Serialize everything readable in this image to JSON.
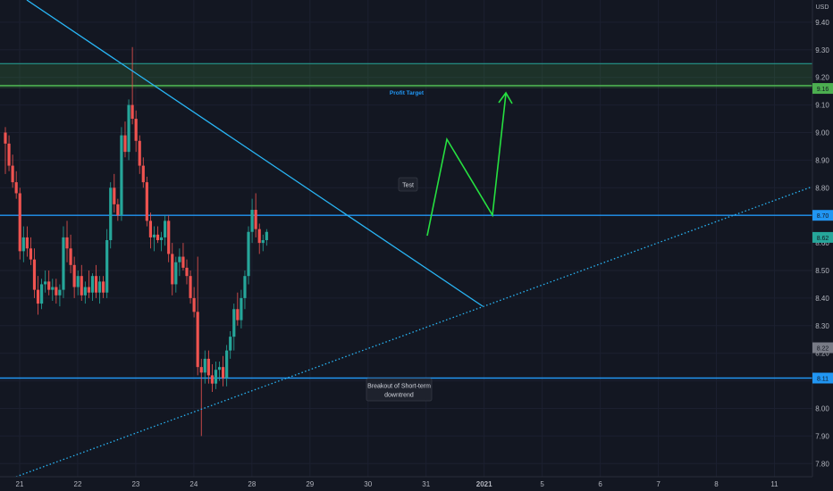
{
  "chart_data": {
    "type": "candlestick",
    "currency": "USD",
    "y_ticks": [
      "7.80",
      "7.90",
      "8.00",
      "8.10",
      "8.20",
      "8.30",
      "8.40",
      "8.50",
      "8.60",
      "8.70",
      "8.80",
      "8.90",
      "9.00",
      "9.10",
      "9.20",
      "9.30",
      "9.40"
    ],
    "ylim": [
      7.75,
      9.45
    ],
    "x_ticks": [
      {
        "label": "21",
        "i": 0
      },
      {
        "label": "22",
        "i": 16
      },
      {
        "label": "23",
        "i": 32
      },
      {
        "label": "24",
        "i": 48
      },
      {
        "label": "28",
        "i": 64
      },
      {
        "label": "29",
        "i": 80
      },
      {
        "label": "30",
        "i": 96
      },
      {
        "label": "31",
        "i": 112
      },
      {
        "label": "2021",
        "i": 128
      },
      {
        "label": "5",
        "i": 144
      },
      {
        "label": "6",
        "i": 160
      },
      {
        "label": "7",
        "i": 176
      },
      {
        "label": "8",
        "i": 192
      },
      {
        "label": "11",
        "i": 208
      }
    ],
    "price_badges": [
      {
        "value": "9.16",
        "color": "#4caf50"
      },
      {
        "value": "8.70",
        "color": "#2196f3"
      },
      {
        "value": "8.62",
        "color": "#26a69a"
      },
      {
        "value": "8.22",
        "color": "#787b86"
      },
      {
        "value": "8.11",
        "color": "#2196f3"
      }
    ],
    "annotations": {
      "profit_target": "Profit Target",
      "test": "Test",
      "breakout": [
        "Breakout of Short-term",
        "downtrend"
      ]
    },
    "zones": [
      {
        "from": 9.16,
        "to": 9.25
      }
    ],
    "hlines": [
      9.25,
      9.17,
      8.7,
      8.11
    ],
    "candles": [
      [
        9.0,
        9.02,
        8.85,
        8.96
      ],
      [
        8.96,
        8.99,
        8.86,
        8.88
      ],
      [
        8.88,
        8.92,
        8.8,
        8.82
      ],
      [
        8.82,
        8.86,
        8.76,
        8.78
      ],
      [
        8.78,
        8.8,
        8.54,
        8.57
      ],
      [
        8.57,
        8.66,
        8.53,
        8.62
      ],
      [
        8.62,
        8.66,
        8.55,
        8.58
      ],
      [
        8.58,
        8.62,
        8.52,
        8.54
      ],
      [
        8.54,
        8.58,
        8.4,
        8.43
      ],
      [
        8.43,
        8.48,
        8.34,
        8.38
      ],
      [
        8.38,
        8.47,
        8.36,
        8.45
      ],
      [
        8.45,
        8.5,
        8.42,
        8.46
      ],
      [
        8.46,
        8.5,
        8.41,
        8.43
      ],
      [
        8.43,
        8.47,
        8.39,
        8.44
      ],
      [
        8.44,
        8.47,
        8.38,
        8.41
      ],
      [
        8.41,
        8.45,
        8.37,
        8.43
      ],
      [
        8.43,
        8.66,
        8.4,
        8.62
      ],
      [
        8.62,
        8.68,
        8.53,
        8.58
      ],
      [
        8.58,
        8.63,
        8.49,
        8.52
      ],
      [
        8.52,
        8.55,
        8.4,
        8.44
      ],
      [
        8.44,
        8.5,
        8.41,
        8.48
      ],
      [
        8.48,
        8.52,
        8.39,
        8.41
      ],
      [
        8.41,
        8.46,
        8.38,
        8.44
      ],
      [
        8.44,
        8.5,
        8.4,
        8.42
      ],
      [
        8.42,
        8.49,
        8.39,
        8.48
      ],
      [
        8.48,
        8.52,
        8.4,
        8.42
      ],
      [
        8.42,
        8.48,
        8.38,
        8.46
      ],
      [
        8.46,
        8.48,
        8.4,
        8.42
      ],
      [
        8.42,
        8.65,
        8.4,
        8.61
      ],
      [
        8.61,
        8.82,
        8.58,
        8.8
      ],
      [
        8.8,
        8.85,
        8.71,
        8.74
      ],
      [
        8.74,
        8.76,
        8.68,
        8.7
      ],
      [
        8.7,
        9.02,
        8.68,
        8.99
      ],
      [
        8.99,
        9.04,
        8.91,
        8.93
      ],
      [
        8.93,
        9.12,
        8.9,
        9.1
      ],
      [
        9.1,
        9.31,
        9.03,
        9.05
      ],
      [
        9.05,
        9.08,
        8.93,
        8.97
      ],
      [
        8.97,
        8.99,
        8.85,
        8.88
      ],
      [
        8.88,
        8.91,
        8.8,
        8.82
      ],
      [
        8.82,
        8.84,
        8.66,
        8.68
      ],
      [
        8.68,
        8.71,
        8.58,
        8.62
      ],
      [
        8.62,
        8.66,
        8.57,
        8.63
      ],
      [
        8.63,
        8.66,
        8.6,
        8.61
      ],
      [
        8.61,
        8.64,
        8.57,
        8.62
      ],
      [
        8.62,
        8.7,
        8.59,
        8.68
      ],
      [
        8.68,
        8.7,
        8.53,
        8.56
      ],
      [
        8.56,
        8.6,
        8.41,
        8.45
      ],
      [
        8.45,
        8.55,
        8.42,
        8.53
      ],
      [
        8.53,
        8.58,
        8.48,
        8.55
      ],
      [
        8.55,
        8.6,
        8.5,
        8.51
      ],
      [
        8.51,
        8.54,
        8.45,
        8.48
      ],
      [
        8.48,
        8.5,
        8.38,
        8.4
      ],
      [
        8.4,
        8.44,
        8.33,
        8.35
      ],
      [
        8.35,
        8.55,
        8.12,
        8.15
      ],
      [
        8.15,
        8.18,
        7.9,
        8.13
      ],
      [
        8.13,
        8.21,
        8.09,
        8.18
      ],
      [
        8.18,
        8.21,
        8.09,
        8.12
      ],
      [
        8.12,
        8.16,
        8.06,
        8.09
      ],
      [
        8.09,
        8.17,
        8.07,
        8.14
      ],
      [
        8.14,
        8.17,
        8.1,
        8.15
      ],
      [
        8.15,
        8.19,
        8.08,
        8.11
      ],
      [
        8.11,
        8.23,
        8.08,
        8.21
      ],
      [
        8.21,
        8.28,
        8.18,
        8.26
      ],
      [
        8.26,
        8.38,
        8.21,
        8.36
      ],
      [
        8.36,
        8.42,
        8.3,
        8.32
      ],
      [
        8.32,
        8.43,
        8.29,
        8.4
      ],
      [
        8.4,
        8.5,
        8.36,
        8.48
      ],
      [
        8.48,
        8.66,
        8.45,
        8.64
      ],
      [
        8.64,
        8.76,
        8.6,
        8.72
      ],
      [
        8.72,
        8.78,
        8.62,
        8.65
      ],
      [
        8.65,
        8.67,
        8.56,
        8.6
      ],
      [
        8.6,
        8.63,
        8.57,
        8.61
      ],
      [
        8.61,
        8.65,
        8.59,
        8.64
      ]
    ]
  }
}
